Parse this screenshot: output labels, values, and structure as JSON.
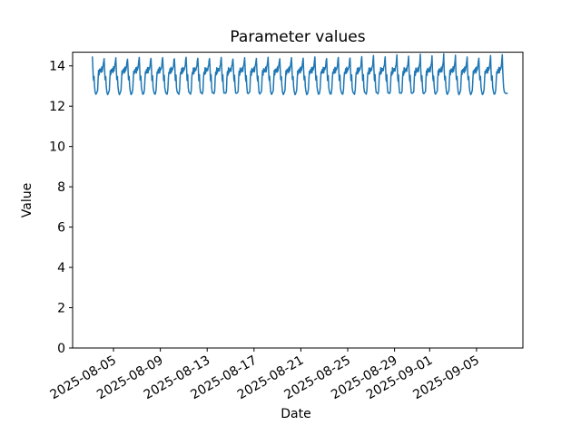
{
  "figure": {
    "title": "Parameter values",
    "xlabel": "Date",
    "ylabel": "Value",
    "background_color": "#ffffff",
    "axis_color": "#000000"
  },
  "chart_data": {
    "type": "line",
    "title": "Parameter values",
    "xlabel": "Date",
    "ylabel": "Value",
    "legend": null,
    "grid": false,
    "line_color": "#1f77b4",
    "line_width": 1.5,
    "ylim": [
      0,
      14.68
    ],
    "y_ticks": [
      0,
      2,
      4,
      6,
      8,
      10,
      12,
      14
    ],
    "x_epoch_date": "2025-08-01",
    "xlim_days": [
      0.51,
      38.96
    ],
    "x_ticks": [
      {
        "day": 4,
        "label": "2025-08-05"
      },
      {
        "day": 8,
        "label": "2025-08-09"
      },
      {
        "day": 12,
        "label": "2025-08-13"
      },
      {
        "day": 16,
        "label": "2025-08-17"
      },
      {
        "day": 20,
        "label": "2025-08-21"
      },
      {
        "day": 24,
        "label": "2025-08-25"
      },
      {
        "day": 28,
        "label": "2025-08-29"
      },
      {
        "day": 31,
        "label": "2025-09-01"
      },
      {
        "day": 35,
        "label": "2025-09-05"
      }
    ],
    "x_tick_rotation_deg": 30,
    "series": {
      "description": "Dense time series sampled sub-daily from 2025-08-03 to 2025-09-06; repeating daily cycle: sharp peak ~14.4, drop with small shoulder ~13.3, deep trough ~12.62, noisy plateau 13.6-13.95, then spike to next peak",
      "visible_value_range": [
        12.6,
        14.6
      ],
      "start_day": 2.2,
      "cycle_period_days": 1,
      "num_cycles": 36,
      "daily_cycle_phases": [
        0.0,
        0.035,
        0.075,
        0.11,
        0.14,
        0.18,
        0.23,
        0.3,
        0.38,
        0.44,
        0.49,
        0.53,
        0.57,
        0.62,
        0.66,
        0.71,
        0.75,
        0.8,
        0.84,
        0.89,
        0.93,
        0.965
      ],
      "daily_cycle_values": [
        14.4,
        13.92,
        13.32,
        13.28,
        13.52,
        12.98,
        12.7,
        12.62,
        12.64,
        12.78,
        13.4,
        13.72,
        13.58,
        13.86,
        13.66,
        13.88,
        13.7,
        13.9,
        13.76,
        13.95,
        14.05,
        14.25
      ],
      "daily_peaks": [
        14.44,
        14.36,
        14.4,
        14.33,
        14.42,
        14.37,
        14.41,
        14.35,
        14.43,
        14.38,
        14.36,
        14.42,
        14.34,
        14.4,
        14.37,
        14.43,
        14.35,
        14.41,
        14.38,
        14.44,
        14.36,
        14.42,
        14.39,
        14.46,
        14.52,
        14.45,
        14.55,
        14.48,
        14.58,
        14.5,
        14.6,
        14.53,
        14.44,
        14.38,
        14.52,
        14.56
      ],
      "tail_phases": [
        0.035,
        0.08,
        0.12,
        0.17,
        0.23,
        0.32,
        0.42
      ],
      "tail_values": [
        13.88,
        13.3,
        12.92,
        12.72,
        12.66,
        12.63,
        12.64
      ],
      "noise_amplitude": 0.05
    }
  }
}
